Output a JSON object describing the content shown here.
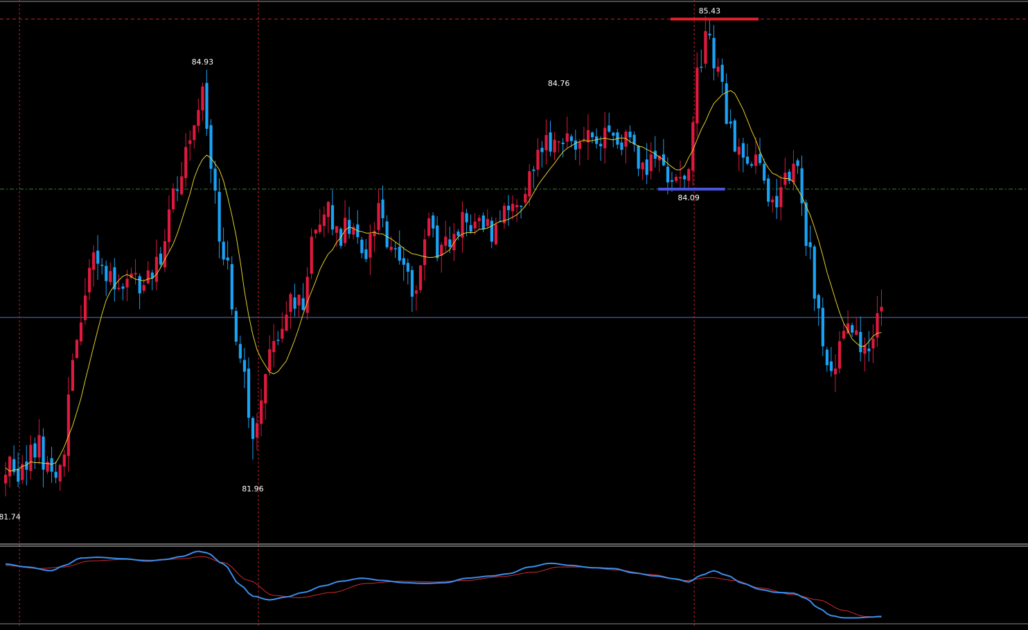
{
  "colors": {
    "background": "#000000",
    "bull_candle": "#e0193e",
    "bear_candle": "#1aa3f5",
    "moving_average": "#e6d02a",
    "resistance_line": "#e5212c",
    "support_line": "#4a55e0",
    "high_gridline": "#c8202a",
    "mid_gridline": "#2e8b3a",
    "current_price_line": "#5a74b8",
    "vertical_marker": "#c8202a",
    "osc_main": "#3a8ff0",
    "osc_signal": "#d42a2a",
    "panel_border": "#cfcfcf"
  },
  "chart_data": {
    "type": "candlestick",
    "ylim": [
      81.3,
      85.58
    ],
    "candle_count": 210,
    "price_labels": [
      {
        "text": "81.74",
        "index": 1,
        "value": 81.74,
        "position": "below"
      },
      {
        "text": "84.93",
        "index": 47,
        "value": 84.93,
        "position": "above"
      },
      {
        "text": "81.96",
        "index": 59,
        "value": 81.96,
        "position": "below"
      },
      {
        "text": "84.76",
        "index": 132,
        "value": 84.76,
        "position": "above"
      },
      {
        "text": "84.09",
        "index": 163,
        "value": 84.09,
        "position": "below"
      },
      {
        "text": "85.43",
        "index": 168,
        "value": 85.43,
        "position": "above"
      }
    ],
    "horizontal_levels": {
      "high": 85.43,
      "mid": 84.09,
      "current": 83.08
    },
    "resistance_segment": {
      "from_index": 159,
      "to_index": 180,
      "value": 85.43
    },
    "support_segment": {
      "from_index": 156,
      "to_index": 172,
      "value": 84.09
    },
    "vertical_markers": [
      2,
      59,
      163
    ],
    "anchors": [
      [
        0,
        81.95
      ],
      [
        3,
        81.85
      ],
      [
        8,
        82.05
      ],
      [
        11,
        81.8
      ],
      [
        13,
        81.95
      ],
      [
        17,
        82.9
      ],
      [
        21,
        83.65
      ],
      [
        24,
        83.35
      ],
      [
        30,
        83.4
      ],
      [
        34,
        83.35
      ],
      [
        37,
        83.6
      ],
      [
        40,
        84.05
      ],
      [
        44,
        84.45
      ],
      [
        47,
        84.8
      ],
      [
        49,
        84.25
      ],
      [
        52,
        83.6
      ],
      [
        56,
        82.8
      ],
      [
        59,
        82.05
      ],
      [
        62,
        82.7
      ],
      [
        65,
        83.0
      ],
      [
        68,
        83.2
      ],
      [
        71,
        83.15
      ],
      [
        74,
        83.8
      ],
      [
        77,
        83.9
      ],
      [
        80,
        83.75
      ],
      [
        83,
        83.85
      ],
      [
        86,
        83.6
      ],
      [
        89,
        83.95
      ],
      [
        92,
        83.65
      ],
      [
        95,
        83.45
      ],
      [
        98,
        83.3
      ],
      [
        101,
        83.8
      ],
      [
        104,
        83.6
      ],
      [
        107,
        83.7
      ],
      [
        110,
        83.85
      ],
      [
        113,
        83.9
      ],
      [
        116,
        83.7
      ],
      [
        119,
        83.95
      ],
      [
        122,
        83.9
      ],
      [
        125,
        84.2
      ],
      [
        128,
        84.4
      ],
      [
        132,
        84.55
      ],
      [
        135,
        84.45
      ],
      [
        138,
        84.5
      ],
      [
        141,
        84.45
      ],
      [
        144,
        84.5
      ],
      [
        147,
        84.5
      ],
      [
        150,
        84.35
      ],
      [
        153,
        84.3
      ],
      [
        156,
        84.3
      ],
      [
        160,
        84.2
      ],
      [
        163,
        84.15
      ],
      [
        165,
        85.0
      ],
      [
        167,
        85.3
      ],
      [
        169,
        85.1
      ],
      [
        171,
        84.85
      ],
      [
        173,
        84.5
      ],
      [
        176,
        84.3
      ],
      [
        179,
        84.3
      ],
      [
        181,
        84.2
      ],
      [
        183,
        83.95
      ],
      [
        186,
        84.15
      ],
      [
        189,
        84.2
      ],
      [
        191,
        83.7
      ],
      [
        194,
        83.05
      ],
      [
        197,
        82.7
      ],
      [
        200,
        83.0
      ],
      [
        203,
        82.95
      ],
      [
        206,
        82.8
      ],
      [
        209,
        83.1
      ]
    ],
    "oscillator": {
      "ylim": [
        0,
        1
      ],
      "main": [
        [
          0,
          0.78
        ],
        [
          5,
          0.74
        ],
        [
          11,
          0.69
        ],
        [
          14,
          0.76
        ],
        [
          18,
          0.86
        ],
        [
          22,
          0.87
        ],
        [
          28,
          0.85
        ],
        [
          34,
          0.82
        ],
        [
          38,
          0.84
        ],
        [
          42,
          0.88
        ],
        [
          46,
          0.95
        ],
        [
          48,
          0.93
        ],
        [
          52,
          0.78
        ],
        [
          56,
          0.5
        ],
        [
          59,
          0.35
        ],
        [
          63,
          0.3
        ],
        [
          67,
          0.34
        ],
        [
          71,
          0.4
        ],
        [
          76,
          0.49
        ],
        [
          80,
          0.55
        ],
        [
          85,
          0.59
        ],
        [
          90,
          0.56
        ],
        [
          95,
          0.53
        ],
        [
          100,
          0.52
        ],
        [
          105,
          0.53
        ],
        [
          110,
          0.59
        ],
        [
          116,
          0.62
        ],
        [
          120,
          0.65
        ],
        [
          125,
          0.74
        ],
        [
          130,
          0.79
        ],
        [
          135,
          0.76
        ],
        [
          140,
          0.73
        ],
        [
          145,
          0.72
        ],
        [
          150,
          0.66
        ],
        [
          155,
          0.62
        ],
        [
          160,
          0.58
        ],
        [
          163,
          0.54
        ],
        [
          166,
          0.63
        ],
        [
          169,
          0.69
        ],
        [
          172,
          0.63
        ],
        [
          176,
          0.52
        ],
        [
          180,
          0.44
        ],
        [
          184,
          0.4
        ],
        [
          188,
          0.39
        ],
        [
          191,
          0.32
        ],
        [
          194,
          0.19
        ],
        [
          197,
          0.09
        ],
        [
          200,
          0.06
        ],
        [
          203,
          0.06
        ],
        [
          206,
          0.07
        ],
        [
          209,
          0.08
        ]
      ],
      "signal": [
        [
          0,
          0.76
        ],
        [
          8,
          0.72
        ],
        [
          14,
          0.74
        ],
        [
          20,
          0.82
        ],
        [
          28,
          0.84
        ],
        [
          36,
          0.83
        ],
        [
          42,
          0.85
        ],
        [
          47,
          0.88
        ],
        [
          52,
          0.8
        ],
        [
          58,
          0.56
        ],
        [
          64,
          0.36
        ],
        [
          70,
          0.33
        ],
        [
          78,
          0.4
        ],
        [
          86,
          0.52
        ],
        [
          94,
          0.55
        ],
        [
          102,
          0.54
        ],
        [
          110,
          0.56
        ],
        [
          118,
          0.61
        ],
        [
          126,
          0.67
        ],
        [
          132,
          0.74
        ],
        [
          138,
          0.74
        ],
        [
          146,
          0.7
        ],
        [
          154,
          0.64
        ],
        [
          162,
          0.56
        ],
        [
          168,
          0.6
        ],
        [
          174,
          0.56
        ],
        [
          180,
          0.46
        ],
        [
          188,
          0.37
        ],
        [
          194,
          0.3
        ],
        [
          200,
          0.16
        ],
        [
          205,
          0.08
        ],
        [
          209,
          0.07
        ]
      ]
    }
  }
}
